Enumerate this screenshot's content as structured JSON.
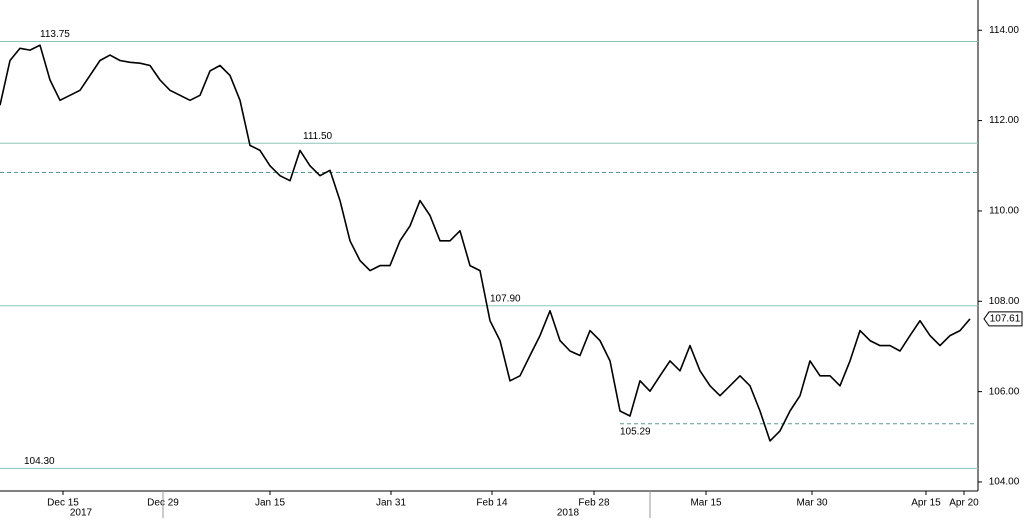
{
  "chart_data": {
    "type": "line",
    "x": [
      0,
      1,
      2,
      3,
      4,
      5,
      6,
      7,
      8,
      9,
      10,
      11,
      12,
      13,
      14,
      15,
      16,
      17,
      18,
      19,
      20,
      21,
      22,
      23,
      24,
      25,
      26,
      27,
      28,
      29,
      30,
      31,
      32,
      33,
      34,
      35,
      36,
      37,
      38,
      39,
      40,
      41,
      42,
      43,
      44,
      45,
      46,
      47,
      48,
      49,
      50,
      51,
      52,
      53,
      54,
      55,
      56,
      57,
      58,
      59,
      60,
      61,
      62,
      63,
      64,
      65,
      66,
      67,
      68,
      69,
      70,
      71,
      72,
      73,
      74,
      75,
      76,
      77,
      78,
      79,
      80,
      81,
      82,
      83,
      84,
      85,
      86,
      87,
      88,
      89,
      90,
      91,
      92,
      93,
      94,
      95,
      96,
      97
    ],
    "series": [
      {
        "color": "#000000",
        "values": [
          112.34,
          113.33,
          113.6,
          113.56,
          113.67,
          112.9,
          112.45,
          112.56,
          112.67,
          113.0,
          113.33,
          113.45,
          113.33,
          113.29,
          113.27,
          113.22,
          112.9,
          112.67,
          112.56,
          112.45,
          112.56,
          113.1,
          113.22,
          113.0,
          112.45,
          111.45,
          111.34,
          111.0,
          110.78,
          110.67,
          111.34,
          111.0,
          110.78,
          110.9,
          110.23,
          109.34,
          108.9,
          108.68,
          108.79,
          108.79,
          109.34,
          109.67,
          110.23,
          109.9,
          109.34,
          109.34,
          109.56,
          108.79,
          108.68,
          107.57,
          107.13,
          106.24,
          106.35,
          106.8,
          107.24,
          107.79,
          107.13,
          106.9,
          106.8,
          107.35,
          107.13,
          106.68,
          105.57,
          105.46,
          106.24,
          106.01,
          106.35,
          106.68,
          106.46,
          107.02,
          106.46,
          106.13,
          105.91,
          106.13,
          106.35,
          106.13,
          105.57,
          104.91,
          105.13,
          105.57,
          105.91,
          106.68,
          106.35,
          106.35,
          106.13,
          106.68,
          107.35,
          107.13,
          107.02,
          107.02,
          106.9,
          107.24,
          107.57,
          107.24,
          107.02,
          107.24,
          107.35,
          107.61
        ]
      }
    ],
    "xlim": [
      0,
      97.8
    ],
    "xticks": [
      {
        "value": 6.3,
        "label": "Dec 15"
      },
      {
        "value": 16.3,
        "label": "Dec 29"
      },
      {
        "value": 27,
        "label": "Jan 15"
      },
      {
        "value": 39.1,
        "label": "Jan 31"
      },
      {
        "value": 49.2,
        "label": "Feb 14"
      },
      {
        "value": 59.4,
        "label": "Feb 28"
      },
      {
        "value": 70.6,
        "label": "Mar 15"
      },
      {
        "value": 81.2,
        "label": "Mar 30"
      },
      {
        "value": 92.6,
        "label": "Apr 15"
      },
      {
        "value": 96.4,
        "label": "Apr 20"
      }
    ],
    "year_ticks": [
      {
        "value": 8.1,
        "label": "2017"
      },
      {
        "value": 56.8,
        "label": "2018"
      }
    ],
    "ylim": [
      103.8,
      114.67
    ],
    "yticks": [
      {
        "value": 104,
        "label": "104.00"
      },
      {
        "value": 106,
        "label": "106.00"
      },
      {
        "value": 108,
        "label": "108.00"
      },
      {
        "value": 110,
        "label": "110.00"
      },
      {
        "value": 112,
        "label": "112.00"
      },
      {
        "value": 114,
        "label": "114.00"
      }
    ],
    "levels": [
      {
        "value": 113.75,
        "style": "solid"
      },
      {
        "value": 111.5,
        "label": "111.50",
        "style": "solid"
      },
      {
        "value": 110.85,
        "style": "dashed"
      },
      {
        "value": 107.9,
        "label": "107.90",
        "style": "solid"
      },
      {
        "value": 105.29,
        "style": "dashed",
        "from": 62
      },
      {
        "value": 104.3,
        "label": "104.30",
        "style": "solid"
      }
    ],
    "last_price": 107.61
  }
}
